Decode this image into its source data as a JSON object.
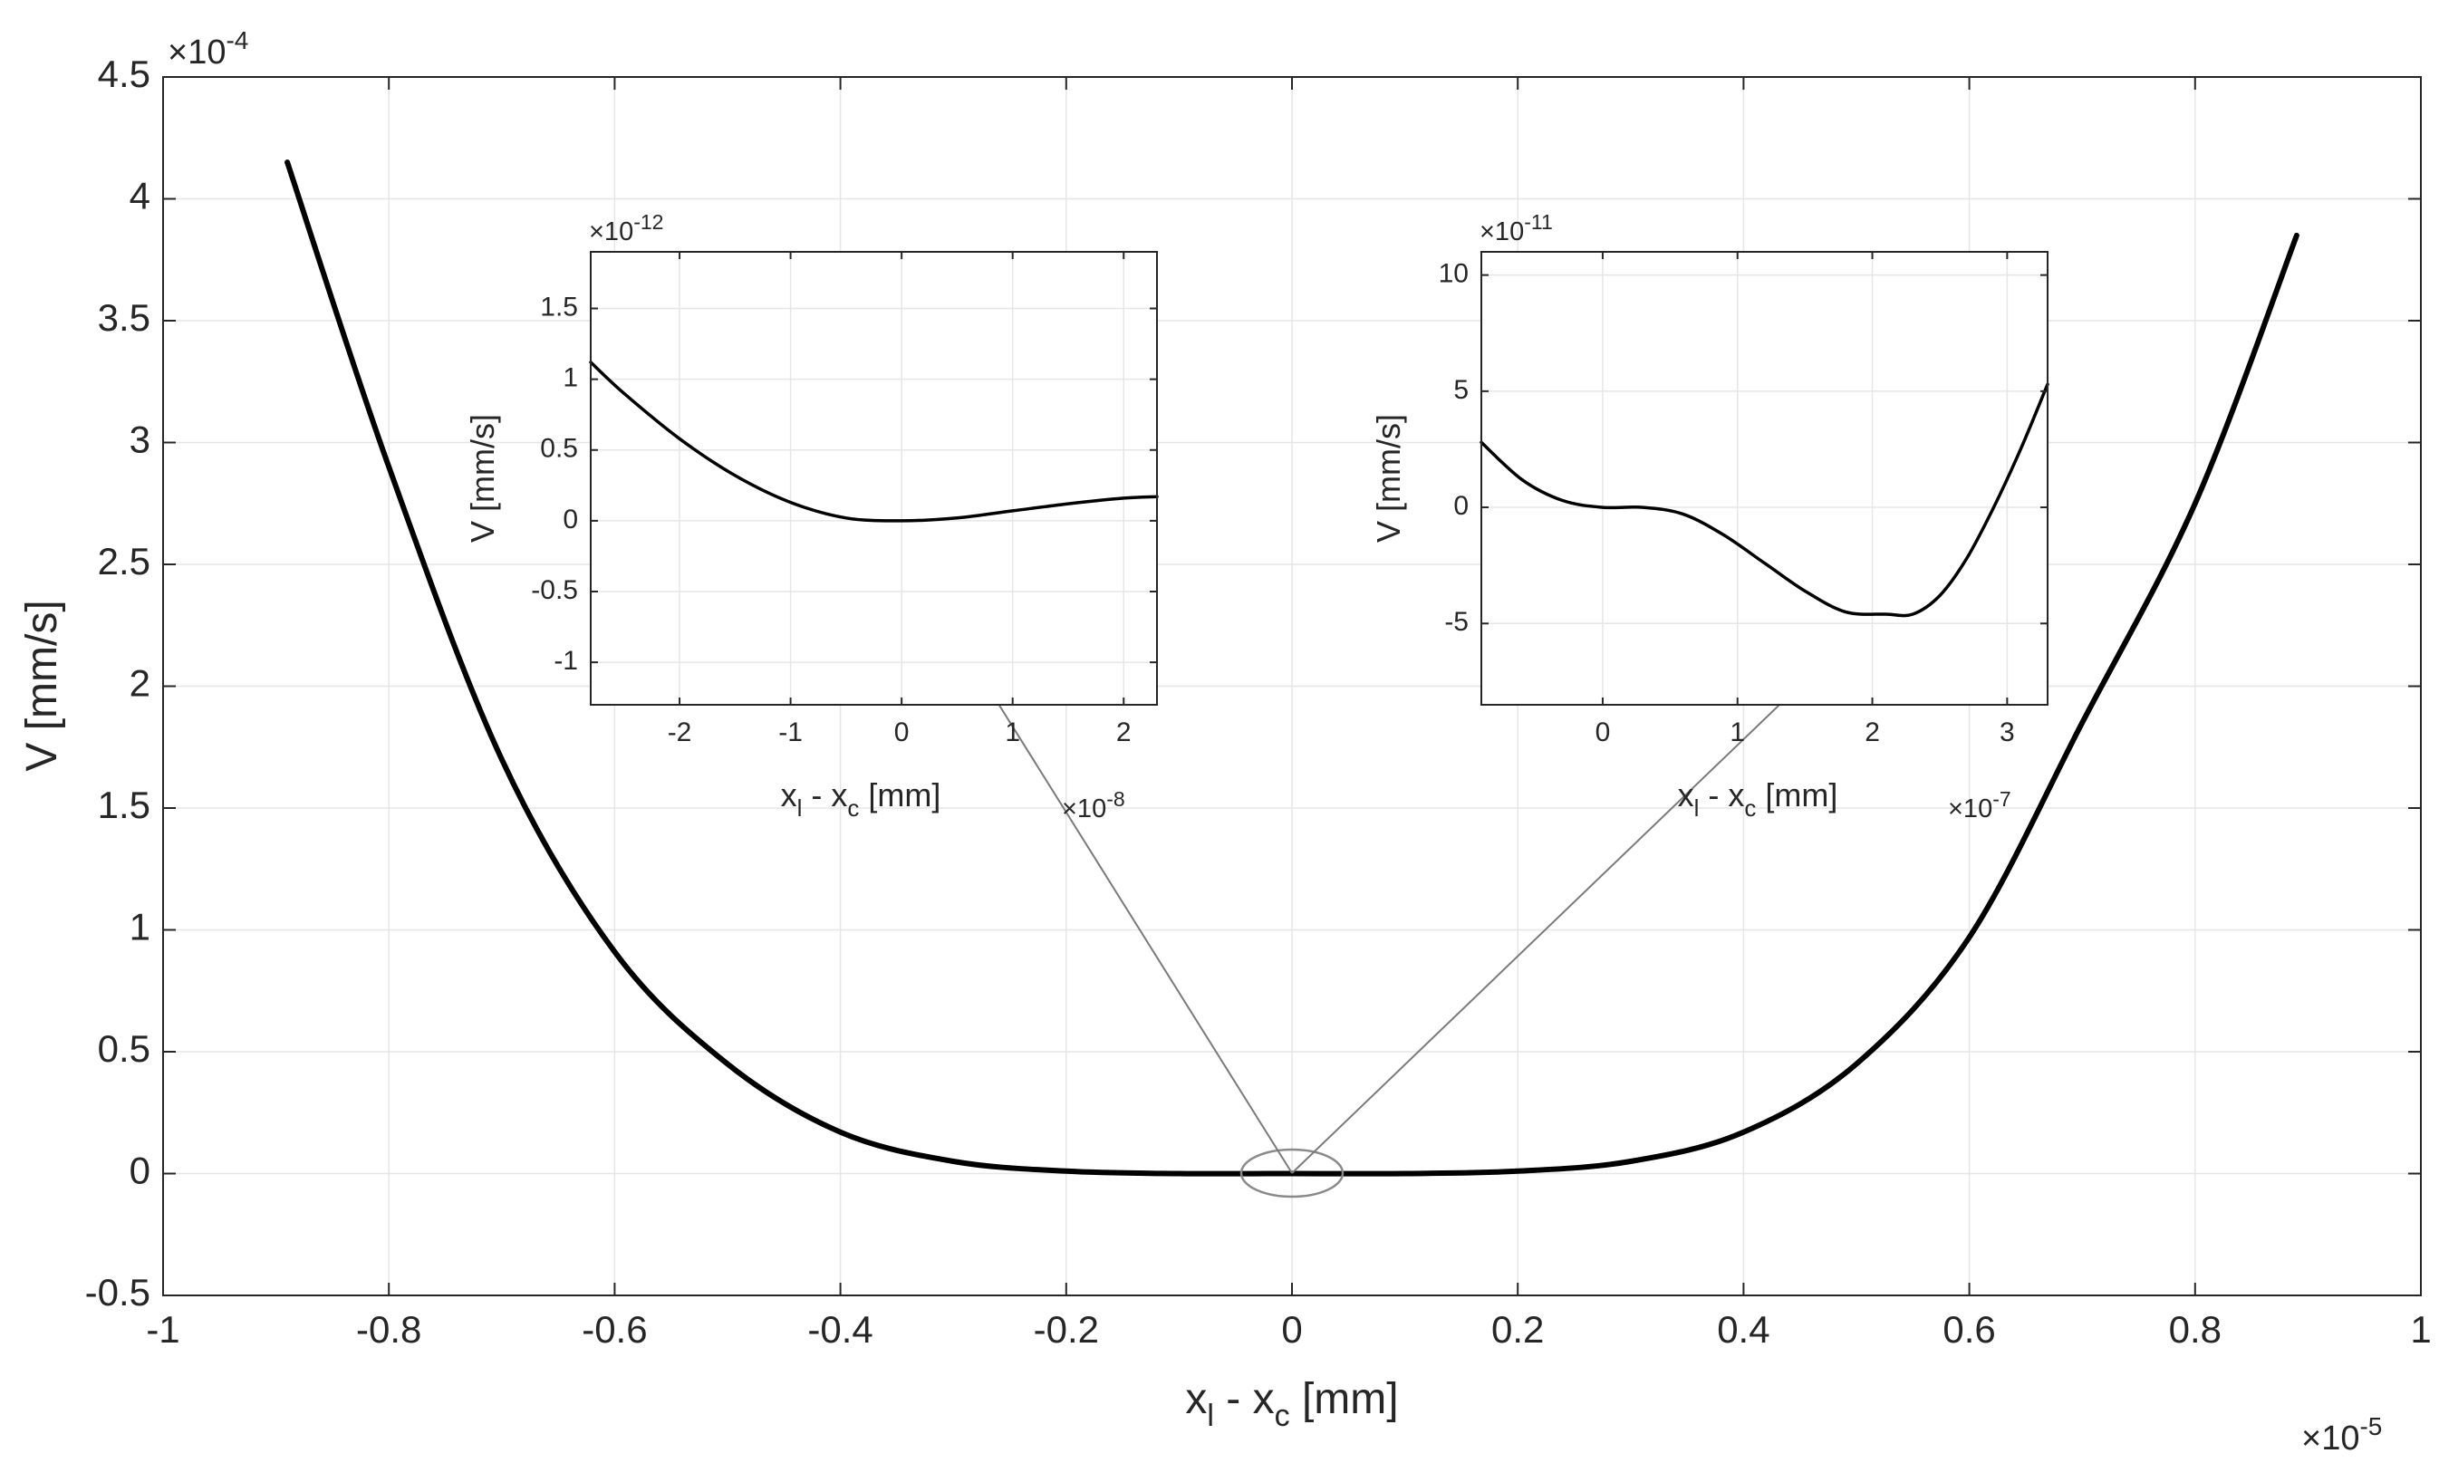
{
  "chart_data": [
    {
      "id": "main",
      "type": "line",
      "xlabel": {
        "base": "x",
        "sub1": "l",
        "mid": " - x",
        "sub2": "c",
        "unit": " [mm]"
      },
      "ylabel": "V [mm/s]",
      "x_exponent_label": "×10",
      "x_exponent": "-5",
      "y_exponent_label": "×10",
      "y_exponent": "-4",
      "xlim": [
        -1,
        1
      ],
      "ylim": [
        -0.5,
        4.5
      ],
      "xticks": [
        -1,
        -0.8,
        -0.6,
        -0.4,
        -0.2,
        0,
        0.2,
        0.4,
        0.6,
        0.8,
        1
      ],
      "xtick_labels": [
        "-1",
        "-0.8",
        "-0.6",
        "-0.4",
        "-0.2",
        "0",
        "0.2",
        "0.4",
        "0.6",
        "0.8",
        "1"
      ],
      "yticks": [
        -0.5,
        0,
        0.5,
        1,
        1.5,
        2,
        2.5,
        3,
        3.5,
        4,
        4.5
      ],
      "ytick_labels": [
        "-0.5",
        "0",
        "0.5",
        "1",
        "1.5",
        "2",
        "2.5",
        "3",
        "3.5",
        "4",
        "4.5"
      ],
      "grid": true,
      "series": [
        {
          "x": [
            -0.89,
            -0.8,
            -0.7,
            -0.6,
            -0.5,
            -0.4,
            -0.3,
            -0.2,
            -0.1,
            0,
            0.1,
            0.2,
            0.3,
            0.4,
            0.5,
            0.6,
            0.7,
            0.8,
            0.89
          ],
          "values": [
            4.15,
            2.9,
            1.7,
            0.91,
            0.45,
            0.17,
            0.05,
            0.01,
            0.0,
            0.0,
            0.0,
            0.01,
            0.05,
            0.17,
            0.45,
            0.97,
            1.85,
            2.75,
            3.85
          ]
        }
      ],
      "annotation": "ellipse around origin with arrows to insets"
    },
    {
      "id": "inset-left",
      "type": "line",
      "xlabel": {
        "base": "x",
        "sub1": "l",
        "mid": " - x",
        "sub2": "c",
        "unit": " [mm]"
      },
      "ylabel": "V [mm/s]",
      "x_exponent_label": "×10",
      "x_exponent": "-8",
      "y_exponent_label": "×10",
      "y_exponent": "-12",
      "xlim": [
        -2.8,
        2.3
      ],
      "ylim": [
        -1.3,
        1.9
      ],
      "xticks": [
        -2,
        -1,
        0,
        1,
        2
      ],
      "xtick_labels": [
        "-2",
        "-1",
        "0",
        "1",
        "2"
      ],
      "yticks": [
        -1,
        -0.5,
        0,
        0.5,
        1,
        1.5
      ],
      "ytick_labels": [
        "-1",
        "-0.5",
        "0",
        "0.5",
        "1",
        "1.5"
      ],
      "grid": true,
      "series": [
        {
          "x": [
            -2.8,
            -2.5,
            -2.0,
            -1.5,
            -1.0,
            -0.5,
            0.0,
            0.5,
            1.0,
            1.5,
            2.0,
            2.3
          ],
          "values": [
            1.12,
            0.9,
            0.58,
            0.32,
            0.13,
            0.02,
            0.0,
            0.02,
            0.07,
            0.12,
            0.16,
            0.17
          ]
        }
      ]
    },
    {
      "id": "inset-right",
      "type": "line",
      "xlabel": {
        "base": "x",
        "sub1": "l",
        "mid": " - x",
        "sub2": "c",
        "unit": " [mm]"
      },
      "ylabel": "V [mm/s]",
      "x_exponent_label": "×10",
      "x_exponent": "-7",
      "y_exponent_label": "×10",
      "y_exponent": "-11",
      "xlim": [
        -0.9,
        3.3
      ],
      "ylim": [
        -8.5,
        11
      ],
      "xticks": [
        0,
        1,
        2,
        3
      ],
      "xtick_labels": [
        "0",
        "1",
        "2",
        "3"
      ],
      "yticks": [
        -5,
        0,
        5,
        10
      ],
      "ytick_labels": [
        "-5",
        "0",
        "5",
        "10"
      ],
      "grid": true,
      "series": [
        {
          "x": [
            -0.9,
            -0.6,
            -0.3,
            0.0,
            0.3,
            0.6,
            0.9,
            1.2,
            1.5,
            1.8,
            2.1,
            2.3,
            2.5,
            2.7,
            2.9,
            3.1,
            3.3
          ],
          "values": [
            2.8,
            1.2,
            0.3,
            0.0,
            0.0,
            -0.3,
            -1.2,
            -2.4,
            -3.6,
            -4.5,
            -4.6,
            -4.6,
            -3.8,
            -2.2,
            0.0,
            2.5,
            5.3
          ]
        }
      ]
    }
  ]
}
